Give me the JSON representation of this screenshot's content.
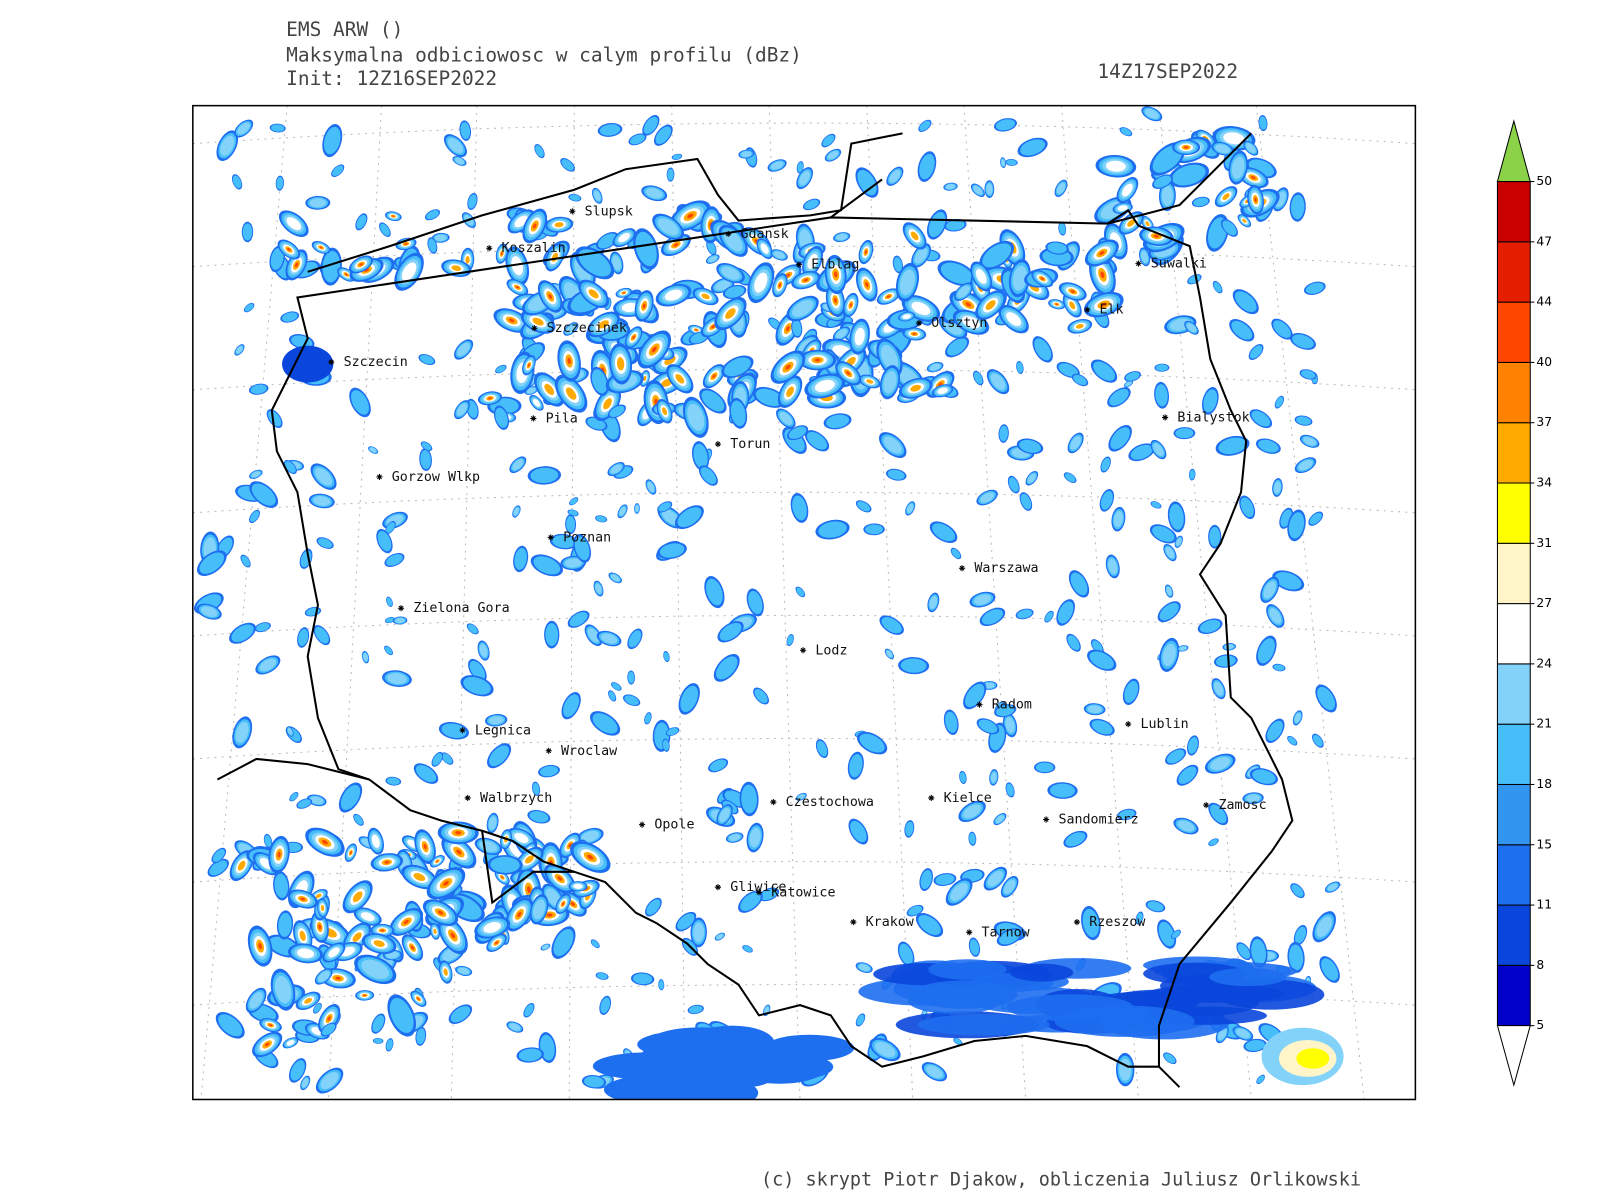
{
  "header": {
    "model": "EMS ARW ()",
    "field": "Maksymalna odbiciowosc w calym profilu (dBz)",
    "init": "Init: 12Z16SEP2022",
    "valid_time": "14Z17SEP2022"
  },
  "cities": [
    "Slupsk",
    "Koszalin",
    "Gdansk",
    "Elblag",
    "Suwalki",
    "Szczecinek",
    "Olsztyn",
    "Elk",
    "Szczecin",
    "Pila",
    "Torun",
    "Bialystok",
    "Gorzow Wlkp",
    "Poznan",
    "Warszawa",
    "Zielona Gora",
    "Lodz",
    "Radom",
    "Lublin",
    "Legnica",
    "Wroclaw",
    "Walbrzych",
    "Czestochowa",
    "Kielce",
    "Zamosc",
    "Opole",
    "Sandomierz",
    "Gliwice",
    "Katowice",
    "Krakow",
    "Tarnow",
    "Rzeszow"
  ],
  "colorbar": {
    "levels": [
      5,
      8,
      11,
      15,
      18,
      21,
      24,
      27,
      31,
      34,
      37,
      40,
      44,
      47,
      50
    ],
    "colors": [
      "#0000c8",
      "#0a46dc",
      "#1e6ef0",
      "#3296f0",
      "#46befa",
      "#82d2fa",
      "#ffffff",
      "#fff5c8",
      "#ffff00",
      "#ffaa00",
      "#ff8200",
      "#ff4600",
      "#e61e00",
      "#c80000"
    ],
    "under_color": "#ffffff",
    "over_color": "#8cd248"
  },
  "credit": "(c) skrypt Piotr Djakow, obliczenia Juliusz Orlikowski"
}
